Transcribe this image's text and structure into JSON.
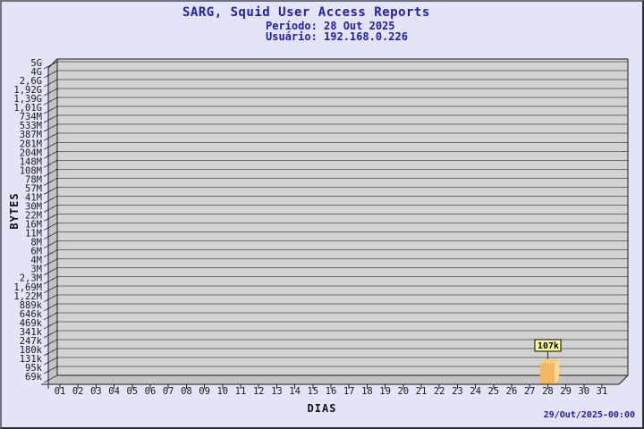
{
  "header": {
    "title": "SARG, Squid User Access Reports",
    "period": "Período: 28 Out 2025",
    "user": "Usuário: 192.168.0.226"
  },
  "footer": {
    "timestamp": "29/Out/2025-00:00"
  },
  "chart_data": {
    "type": "bar",
    "title": "SARG, Squid User Access Reports",
    "subtitle_period": "Período: 28 Out 2025",
    "subtitle_user": "Usuário: 192.168.0.226",
    "xlabel": "DIAS",
    "ylabel": "BYTES",
    "y_scale": "log",
    "grid": true,
    "legend": "none",
    "categories": [
      "01",
      "02",
      "03",
      "04",
      "05",
      "06",
      "07",
      "08",
      "09",
      "10",
      "11",
      "12",
      "13",
      "14",
      "15",
      "16",
      "17",
      "18",
      "19",
      "20",
      "21",
      "22",
      "23",
      "24",
      "25",
      "26",
      "27",
      "28",
      "29",
      "30",
      "31"
    ],
    "y_tick_labels": [
      "5G",
      "4G",
      "2,6G",
      "1,92G",
      "1,39G",
      "1,01G",
      "734M",
      "533M",
      "387M",
      "281M",
      "204M",
      "148M",
      "108M",
      "78M",
      "57M",
      "41M",
      "30M",
      "22M",
      "16M",
      "11M",
      "8M",
      "6M",
      "4M",
      "3M",
      "2,3M",
      "1,69M",
      "1,22M",
      "889k",
      "646k",
      "469k",
      "341k",
      "247k",
      "180k",
      "131k",
      "95k",
      "69k"
    ],
    "y_tick_values": [
      5000000000,
      4000000000,
      2600000000,
      1920000000,
      1390000000,
      1010000000,
      734000000,
      533000000,
      387000000,
      281000000,
      204000000,
      148000000,
      108000000,
      78000000,
      57000000,
      41000000,
      30000000,
      22000000,
      16000000,
      11000000,
      8000000,
      6000000,
      4000000,
      3000000,
      2300000,
      1690000,
      1220000,
      889000,
      646000,
      469000,
      341000,
      247000,
      180000,
      131000,
      95000,
      69000
    ],
    "series": [
      {
        "name": "bytes",
        "points": [
          {
            "category": "28",
            "value": 107000,
            "label": "107k"
          }
        ]
      }
    ],
    "timestamp": "29/Out/2025-00:00",
    "colors": {
      "background": "#e4e4f8",
      "title_text": "#2121a8",
      "wall": "#d2d2d2",
      "side_wall": "#c3c3c3",
      "gridline": "#6a6a6a",
      "outline": "#1c1c1c",
      "tick_text": "#1a1a1a",
      "bar_front": "#f2b760",
      "bar_side": "#fbd795",
      "bar_top": "#f7cb7c",
      "value_box_bg": "#ffff9e",
      "value_box_border": "#000000"
    }
  }
}
